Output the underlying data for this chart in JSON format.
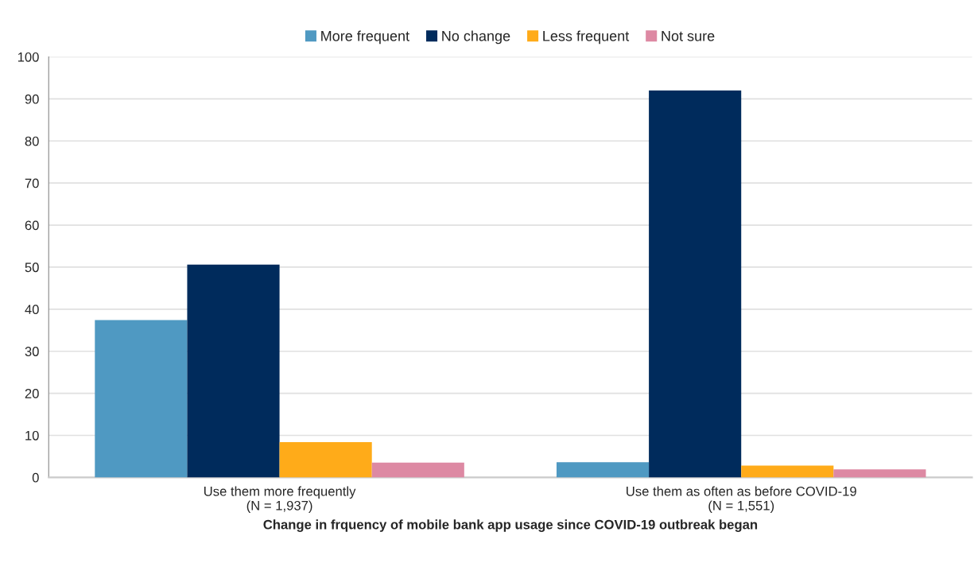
{
  "chart_data": {
    "type": "bar",
    "categories": [
      "Use them more frequently\n(N = 1,937)",
      "Use them as often as before COVID-19\n(N = 1,551)"
    ],
    "xlabel": "Change in frquency of mobile bank app usage since COVID-19 outbreak began",
    "series": [
      {
        "name": "More frequent",
        "color": "#4f99c2",
        "values": [
          37.4,
          3.6
        ]
      },
      {
        "name": "No change",
        "color": "#002b5c",
        "values": [
          50.6,
          92.0
        ]
      },
      {
        "name": "Less frequent",
        "color": "#ffab19",
        "values": [
          8.4,
          2.8
        ]
      },
      {
        "name": "Not sure",
        "color": "#dd89a3",
        "values": [
          3.5,
          1.9
        ]
      }
    ],
    "ylim": [
      0,
      100
    ],
    "yticks": [
      0,
      10,
      20,
      30,
      40,
      50,
      60,
      70,
      80,
      90,
      100
    ],
    "grid": "y",
    "legend": "top"
  }
}
